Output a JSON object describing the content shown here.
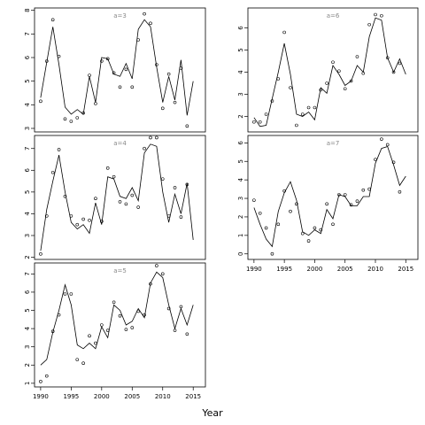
{
  "xlabel": "Year",
  "colors": {
    "line": "#000000",
    "panel_label": "#888888",
    "frame": "#000000"
  },
  "x_ticks": [
    1990,
    1995,
    2000,
    2005,
    2010,
    2015
  ],
  "chart_data": [
    {
      "type": "line",
      "title": "a=3",
      "xlim": [
        1989,
        2017
      ],
      "ylim": [
        2.85,
        8.1
      ],
      "y_ticks": [
        3,
        4,
        5,
        6,
        7,
        8
      ],
      "x_ticks_shown": false,
      "series": [
        {
          "type": "line",
          "x": [
            1990,
            1991,
            1992,
            1993,
            1994,
            1995,
            1996,
            1997,
            1998,
            1999,
            2000,
            2001,
            2002,
            2003,
            2004,
            2005,
            2006,
            2007,
            2008,
            2009,
            2010,
            2011,
            2012,
            2013,
            2014,
            2015,
            2016
          ],
          "y": [
            4.3,
            5.8,
            7.3,
            5.7,
            3.9,
            3.6,
            3.8,
            3.6,
            5.2,
            4.1,
            6.0,
            5.95,
            5.3,
            5.2,
            5.75,
            5.1,
            7.2,
            7.6,
            7.3,
            5.6,
            4.1,
            5.2,
            4.2,
            5.9,
            3.55,
            5.0,
            null
          ]
        },
        {
          "type": "scatter",
          "x": [
            1990,
            1991,
            1992,
            1993,
            1994,
            1995,
            1996,
            1997,
            1998,
            1999,
            2000,
            2001,
            2002,
            2003,
            2004,
            2005,
            2006,
            2007,
            2008,
            2009,
            2010,
            2011,
            2012,
            2013,
            2014
          ],
          "y": [
            4.15,
            5.85,
            7.6,
            6.05,
            3.4,
            3.3,
            3.45,
            3.65,
            5.25,
            4.05,
            5.85,
            5.95,
            5.35,
            4.75,
            5.5,
            4.75,
            6.75,
            7.85,
            7.45,
            5.7,
            3.85,
            5.3,
            4.1,
            5.55,
            3.1
          ]
        }
      ]
    },
    {
      "type": "line",
      "title": "a=6",
      "xlim": [
        1989,
        2017
      ],
      "ylim": [
        1.3,
        6.9
      ],
      "y_ticks": [
        2,
        3,
        4,
        5,
        6
      ],
      "x_ticks_shown": false,
      "series": [
        {
          "type": "line",
          "x": [
            1990,
            1991,
            1992,
            1993,
            1994,
            1995,
            1996,
            1997,
            1998,
            1999,
            2000,
            2001,
            2002,
            2003,
            2004,
            2005,
            2006,
            2007,
            2008,
            2009,
            2010,
            2011,
            2012,
            2013,
            2014,
            2015
          ],
          "y": [
            1.95,
            1.55,
            1.6,
            2.8,
            4.0,
            5.3,
            3.9,
            2.1,
            2.0,
            2.2,
            1.85,
            3.3,
            3.05,
            4.3,
            3.9,
            3.4,
            3.6,
            4.3,
            4.0,
            5.6,
            6.45,
            6.35,
            4.65,
            4.0,
            4.6,
            3.9
          ]
        },
        {
          "type": "scatter",
          "x": [
            1990,
            1991,
            1992,
            1993,
            1994,
            1995,
            1996,
            1997,
            1998,
            1999,
            2000,
            2001,
            2002,
            2003,
            2004,
            2005,
            2006,
            2007,
            2008,
            2009,
            2010,
            2011,
            2012,
            2013,
            2014
          ],
          "y": [
            1.75,
            1.75,
            2.1,
            2.7,
            3.7,
            5.8,
            3.3,
            1.6,
            2.1,
            2.4,
            2.4,
            3.2,
            3.5,
            4.45,
            4.05,
            3.25,
            3.6,
            4.7,
            3.95,
            6.15,
            6.6,
            6.55,
            4.65,
            4.0,
            4.4
          ]
        }
      ]
    },
    {
      "type": "line",
      "title": "a=4",
      "xlim": [
        1989,
        2017
      ],
      "ylim": [
        1.9,
        7.6
      ],
      "y_ticks": [
        2,
        3,
        4,
        5,
        6,
        7
      ],
      "x_ticks_shown": false,
      "series": [
        {
          "type": "line",
          "x": [
            1990,
            1991,
            1992,
            1993,
            1994,
            1995,
            1996,
            1997,
            1998,
            1999,
            2000,
            2001,
            2002,
            2003,
            2004,
            2005,
            2006,
            2007,
            2008,
            2009,
            2010,
            2011,
            2012,
            2013,
            2014,
            2015,
            2016
          ],
          "y": [
            2.3,
            4.2,
            5.5,
            6.7,
            5.0,
            3.6,
            3.3,
            3.5,
            3.1,
            4.5,
            3.5,
            5.7,
            5.6,
            4.8,
            4.7,
            5.2,
            4.6,
            6.8,
            7.2,
            7.1,
            5.0,
            3.6,
            4.9,
            4.0,
            5.4,
            2.8,
            null
          ]
        },
        {
          "type": "scatter",
          "x": [
            1990,
            1991,
            1992,
            1993,
            1994,
            1995,
            1996,
            1997,
            1998,
            1999,
            2000,
            2001,
            2002,
            2003,
            2004,
            2005,
            2006,
            2007,
            2008,
            2009,
            2010,
            2011,
            2012,
            2013,
            2014
          ],
          "y": [
            2.15,
            3.9,
            5.9,
            6.95,
            4.8,
            3.9,
            3.5,
            3.75,
            3.7,
            4.7,
            3.65,
            6.1,
            5.7,
            4.55,
            4.45,
            4.85,
            4.3,
            7.0,
            7.5,
            7.5,
            5.6,
            3.9,
            5.2,
            3.85,
            5.35
          ]
        }
      ]
    },
    {
      "type": "line",
      "title": "a=7",
      "xlim": [
        1989,
        2017
      ],
      "ylim": [
        -0.3,
        6.4
      ],
      "y_ticks": [
        0,
        1,
        2,
        3,
        4,
        5,
        6
      ],
      "x_ticks_shown": true,
      "series": [
        {
          "type": "line",
          "x": [
            1990,
            1991,
            1992,
            1993,
            1994,
            1995,
            1996,
            1997,
            1998,
            1999,
            2000,
            2001,
            2002,
            2003,
            2004,
            2005,
            2006,
            2007,
            2008,
            2009,
            2010,
            2011,
            2012,
            2013,
            2014,
            2015,
            2016
          ],
          "y": [
            2.5,
            1.6,
            0.8,
            0.4,
            2.3,
            3.3,
            3.9,
            2.9,
            1.2,
            1.0,
            1.3,
            1.1,
            2.4,
            1.9,
            3.2,
            3.1,
            2.6,
            2.6,
            3.1,
            3.1,
            4.9,
            5.7,
            5.8,
            4.8,
            3.7,
            4.2,
            null
          ]
        },
        {
          "type": "scatter",
          "x": [
            1990,
            1991,
            1992,
            1993,
            1994,
            1995,
            1996,
            1997,
            1998,
            1999,
            2000,
            2001,
            2002,
            2003,
            2004,
            2005,
            2006,
            2007,
            2008,
            2009,
            2010,
            2011,
            2012,
            2013,
            2014
          ],
          "y": [
            2.9,
            2.2,
            1.4,
            0.0,
            1.6,
            3.4,
            2.3,
            2.7,
            1.1,
            0.7,
            1.4,
            1.3,
            2.7,
            1.6,
            3.2,
            3.2,
            2.65,
            2.85,
            3.45,
            3.5,
            5.1,
            6.2,
            5.9,
            4.95,
            3.35
          ]
        }
      ]
    },
    {
      "type": "line",
      "title": "a=5",
      "xlim": [
        1989,
        2017
      ],
      "ylim": [
        0.8,
        7.6
      ],
      "y_ticks": [
        1,
        2,
        3,
        4,
        5,
        6,
        7
      ],
      "x_ticks_shown": true,
      "series": [
        {
          "type": "line",
          "x": [
            1990,
            1991,
            1992,
            1993,
            1994,
            1995,
            1996,
            1997,
            1998,
            1999,
            2000,
            2001,
            2002,
            2003,
            2004,
            2005,
            2006,
            2007,
            2008,
            2009,
            2010,
            2011,
            2012,
            2013,
            2014,
            2015,
            2016
          ],
          "y": [
            2.0,
            2.3,
            3.8,
            5.0,
            6.4,
            5.3,
            3.1,
            2.9,
            3.2,
            2.9,
            4.1,
            3.5,
            5.3,
            5.0,
            4.2,
            4.4,
            5.1,
            4.6,
            6.5,
            7.1,
            6.8,
            5.3,
            4.0,
            5.1,
            4.2,
            5.3,
            null
          ]
        },
        {
          "type": "scatter",
          "x": [
            1990,
            1991,
            1992,
            1993,
            1994,
            1995,
            1996,
            1997,
            1998,
            1999,
            2000,
            2001,
            2002,
            2003,
            2004,
            2005,
            2006,
            2007,
            2008,
            2009,
            2010,
            2011,
            2012,
            2013,
            2014
          ],
          "y": [
            1.1,
            1.4,
            3.85,
            4.75,
            5.9,
            5.9,
            2.3,
            2.1,
            3.6,
            3.2,
            4.2,
            3.9,
            5.45,
            4.7,
            3.95,
            4.05,
            4.95,
            4.75,
            6.45,
            7.45,
            7.0,
            5.1,
            3.9,
            5.2,
            3.7
          ]
        }
      ]
    }
  ]
}
